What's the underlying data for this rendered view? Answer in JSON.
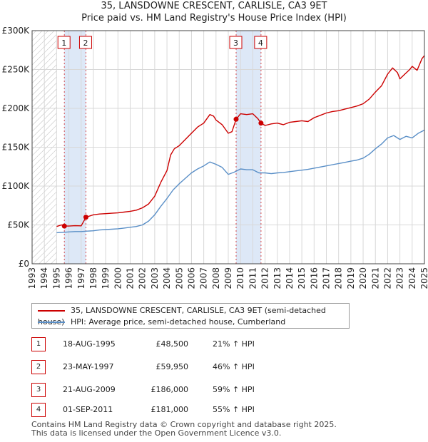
{
  "title_line1": "35, LANSDOWNE CRESCENT, CARLISLE, CA3 9ET",
  "title_line2": "Price paid vs. HM Land Registry's House Price Index (HPI)",
  "chart_data": {
    "type": "line",
    "title": "35, LANSDOWNE CRESCENT, CARLISLE, CA3 9ET — Price paid vs. HM Land Registry's House Price Index (HPI)",
    "xlim": [
      1993,
      2025
    ],
    "ylim": [
      0,
      300000
    ],
    "y_ticks": [
      0,
      50000,
      100000,
      150000,
      200000,
      250000,
      300000
    ],
    "y_tick_labels": [
      "£0",
      "£50K",
      "£100K",
      "£150K",
      "£200K",
      "£250K",
      "£300K"
    ],
    "x_tick_labels": [
      "1993",
      "1994",
      "1995",
      "1996",
      "1997",
      "1998",
      "1999",
      "2000",
      "2001",
      "2002",
      "2003",
      "2004",
      "2005",
      "2006",
      "2007",
      "2008",
      "2009",
      "2010",
      "2011",
      "2012",
      "2013",
      "2014",
      "2015",
      "2016",
      "2017",
      "2018",
      "2019",
      "2020",
      "2021",
      "2022",
      "2023",
      "2024",
      "2025"
    ],
    "hatched_until": 1995.0,
    "series": [
      {
        "name": "35, LANSDOWNE CRESCENT, CARLISLE, CA3 9ET (semi-detached house)",
        "color": "#cc0000",
        "points": [
          [
            1995.0,
            48000
          ],
          [
            1995.4,
            50000
          ],
          [
            1995.63,
            48500
          ],
          [
            1996.0,
            48500
          ],
          [
            1996.5,
            49000
          ],
          [
            1997.0,
            48800
          ],
          [
            1997.39,
            59950
          ],
          [
            1998.0,
            63000
          ],
          [
            1998.5,
            64000
          ],
          [
            1999.0,
            64500
          ],
          [
            1999.5,
            65000
          ],
          [
            2000.0,
            65500
          ],
          [
            2000.5,
            66500
          ],
          [
            2001.0,
            67500
          ],
          [
            2001.5,
            69000
          ],
          [
            2002.0,
            72000
          ],
          [
            2002.5,
            77000
          ],
          [
            2003.0,
            87000
          ],
          [
            2003.5,
            105000
          ],
          [
            2004.0,
            120000
          ],
          [
            2004.3,
            140000
          ],
          [
            2004.6,
            148000
          ],
          [
            2005.0,
            152000
          ],
          [
            2005.5,
            160000
          ],
          [
            2006.0,
            168000
          ],
          [
            2006.5,
            176000
          ],
          [
            2007.0,
            181000
          ],
          [
            2007.5,
            192000
          ],
          [
            2007.8,
            190000
          ],
          [
            2008.0,
            185000
          ],
          [
            2008.5,
            179000
          ],
          [
            2009.0,
            168000
          ],
          [
            2009.3,
            170000
          ],
          [
            2009.64,
            186000
          ],
          [
            2010.0,
            193000
          ],
          [
            2010.5,
            192000
          ],
          [
            2011.0,
            193000
          ],
          [
            2011.4,
            187000
          ],
          [
            2011.67,
            181000
          ],
          [
            2012.0,
            178000
          ],
          [
            2012.5,
            180000
          ],
          [
            2013.0,
            181000
          ],
          [
            2013.5,
            179000
          ],
          [
            2014.0,
            182000
          ],
          [
            2014.5,
            183000
          ],
          [
            2015.0,
            184000
          ],
          [
            2015.5,
            183000
          ],
          [
            2016.0,
            188000
          ],
          [
            2016.5,
            191000
          ],
          [
            2017.0,
            194000
          ],
          [
            2017.5,
            196000
          ],
          [
            2018.0,
            197000
          ],
          [
            2018.5,
            199000
          ],
          [
            2019.0,
            201000
          ],
          [
            2019.5,
            203000
          ],
          [
            2020.0,
            206000
          ],
          [
            2020.5,
            212000
          ],
          [
            2021.0,
            221000
          ],
          [
            2021.5,
            229000
          ],
          [
            2022.0,
            244000
          ],
          [
            2022.4,
            252000
          ],
          [
            2022.8,
            246000
          ],
          [
            2023.0,
            238000
          ],
          [
            2023.4,
            244000
          ],
          [
            2023.8,
            250000
          ],
          [
            2024.0,
            254000
          ],
          [
            2024.4,
            249000
          ],
          [
            2024.8,
            264000
          ],
          [
            2025.0,
            268000
          ]
        ]
      },
      {
        "name": "HPI: Average price, semi-detached house, Cumberland",
        "color": "#5a8fc7",
        "points": [
          [
            1995.0,
            40000
          ],
          [
            1995.5,
            40500
          ],
          [
            1996.0,
            41000
          ],
          [
            1996.5,
            41500
          ],
          [
            1997.0,
            41500
          ],
          [
            1997.5,
            42000
          ],
          [
            1998.0,
            42500
          ],
          [
            1998.5,
            43500
          ],
          [
            1999.0,
            44000
          ],
          [
            1999.5,
            44500
          ],
          [
            2000.0,
            45000
          ],
          [
            2000.5,
            46000
          ],
          [
            2001.0,
            47000
          ],
          [
            2001.5,
            48000
          ],
          [
            2002.0,
            50000
          ],
          [
            2002.5,
            55000
          ],
          [
            2003.0,
            63000
          ],
          [
            2003.5,
            74000
          ],
          [
            2004.0,
            84000
          ],
          [
            2004.5,
            95000
          ],
          [
            2005.0,
            103000
          ],
          [
            2005.5,
            110000
          ],
          [
            2006.0,
            117000
          ],
          [
            2006.5,
            122000
          ],
          [
            2007.0,
            126000
          ],
          [
            2007.5,
            131000
          ],
          [
            2008.0,
            128000
          ],
          [
            2008.5,
            124000
          ],
          [
            2009.0,
            115000
          ],
          [
            2009.5,
            118000
          ],
          [
            2010.0,
            122000
          ],
          [
            2010.5,
            121000
          ],
          [
            2011.0,
            121000
          ],
          [
            2011.5,
            117000
          ],
          [
            2012.0,
            117000
          ],
          [
            2012.5,
            116000
          ],
          [
            2013.0,
            117000
          ],
          [
            2013.5,
            117500
          ],
          [
            2014.0,
            118500
          ],
          [
            2014.5,
            119500
          ],
          [
            2015.0,
            120500
          ],
          [
            2015.5,
            121500
          ],
          [
            2016.0,
            123000
          ],
          [
            2016.5,
            124500
          ],
          [
            2017.0,
            126000
          ],
          [
            2017.5,
            127500
          ],
          [
            2018.0,
            129000
          ],
          [
            2018.5,
            130500
          ],
          [
            2019.0,
            132000
          ],
          [
            2019.5,
            133500
          ],
          [
            2020.0,
            136000
          ],
          [
            2020.5,
            141000
          ],
          [
            2021.0,
            148000
          ],
          [
            2021.5,
            154000
          ],
          [
            2022.0,
            162000
          ],
          [
            2022.5,
            165000
          ],
          [
            2023.0,
            160000
          ],
          [
            2023.5,
            164000
          ],
          [
            2024.0,
            162000
          ],
          [
            2024.5,
            168000
          ],
          [
            2025.0,
            172000
          ]
        ]
      }
    ],
    "sales": [
      {
        "label": "1",
        "x": 1995.63,
        "price": 48500
      },
      {
        "label": "2",
        "x": 1997.39,
        "price": 59950
      },
      {
        "label": "3",
        "x": 2009.64,
        "price": 186000
      },
      {
        "label": "4",
        "x": 2011.67,
        "price": 181000
      }
    ],
    "shaded_spans": [
      [
        1995.63,
        1997.39
      ],
      [
        2009.64,
        2011.67
      ]
    ]
  },
  "legend": {
    "property_label": "35, LANSDOWNE CRESCENT, CARLISLE, CA3 9ET (semi-detached house)",
    "hpi_label": "HPI: Average price, semi-detached house, Cumberland"
  },
  "transactions": [
    {
      "num": "1",
      "date": "18-AUG-1995",
      "price": "£48,500",
      "hpi": "21% ↑ HPI"
    },
    {
      "num": "2",
      "date": "23-MAY-1997",
      "price": "£59,950",
      "hpi": "46% ↑ HPI"
    },
    {
      "num": "3",
      "date": "21-AUG-2009",
      "price": "£186,000",
      "hpi": "59% ↑ HPI"
    },
    {
      "num": "4",
      "date": "01-SEP-2011",
      "price": "£181,000",
      "hpi": "55% ↑ HPI"
    }
  ],
  "footer": {
    "line1": "Contains HM Land Registry data © Crown copyright and database right 2025.",
    "line2": "This data is licensed under the Open Government Licence v3.0."
  },
  "colors": {
    "property": "#cc0000",
    "hpi": "#5a8fc7",
    "shade": "#dde8f7",
    "grid": "#d8d8d8"
  }
}
